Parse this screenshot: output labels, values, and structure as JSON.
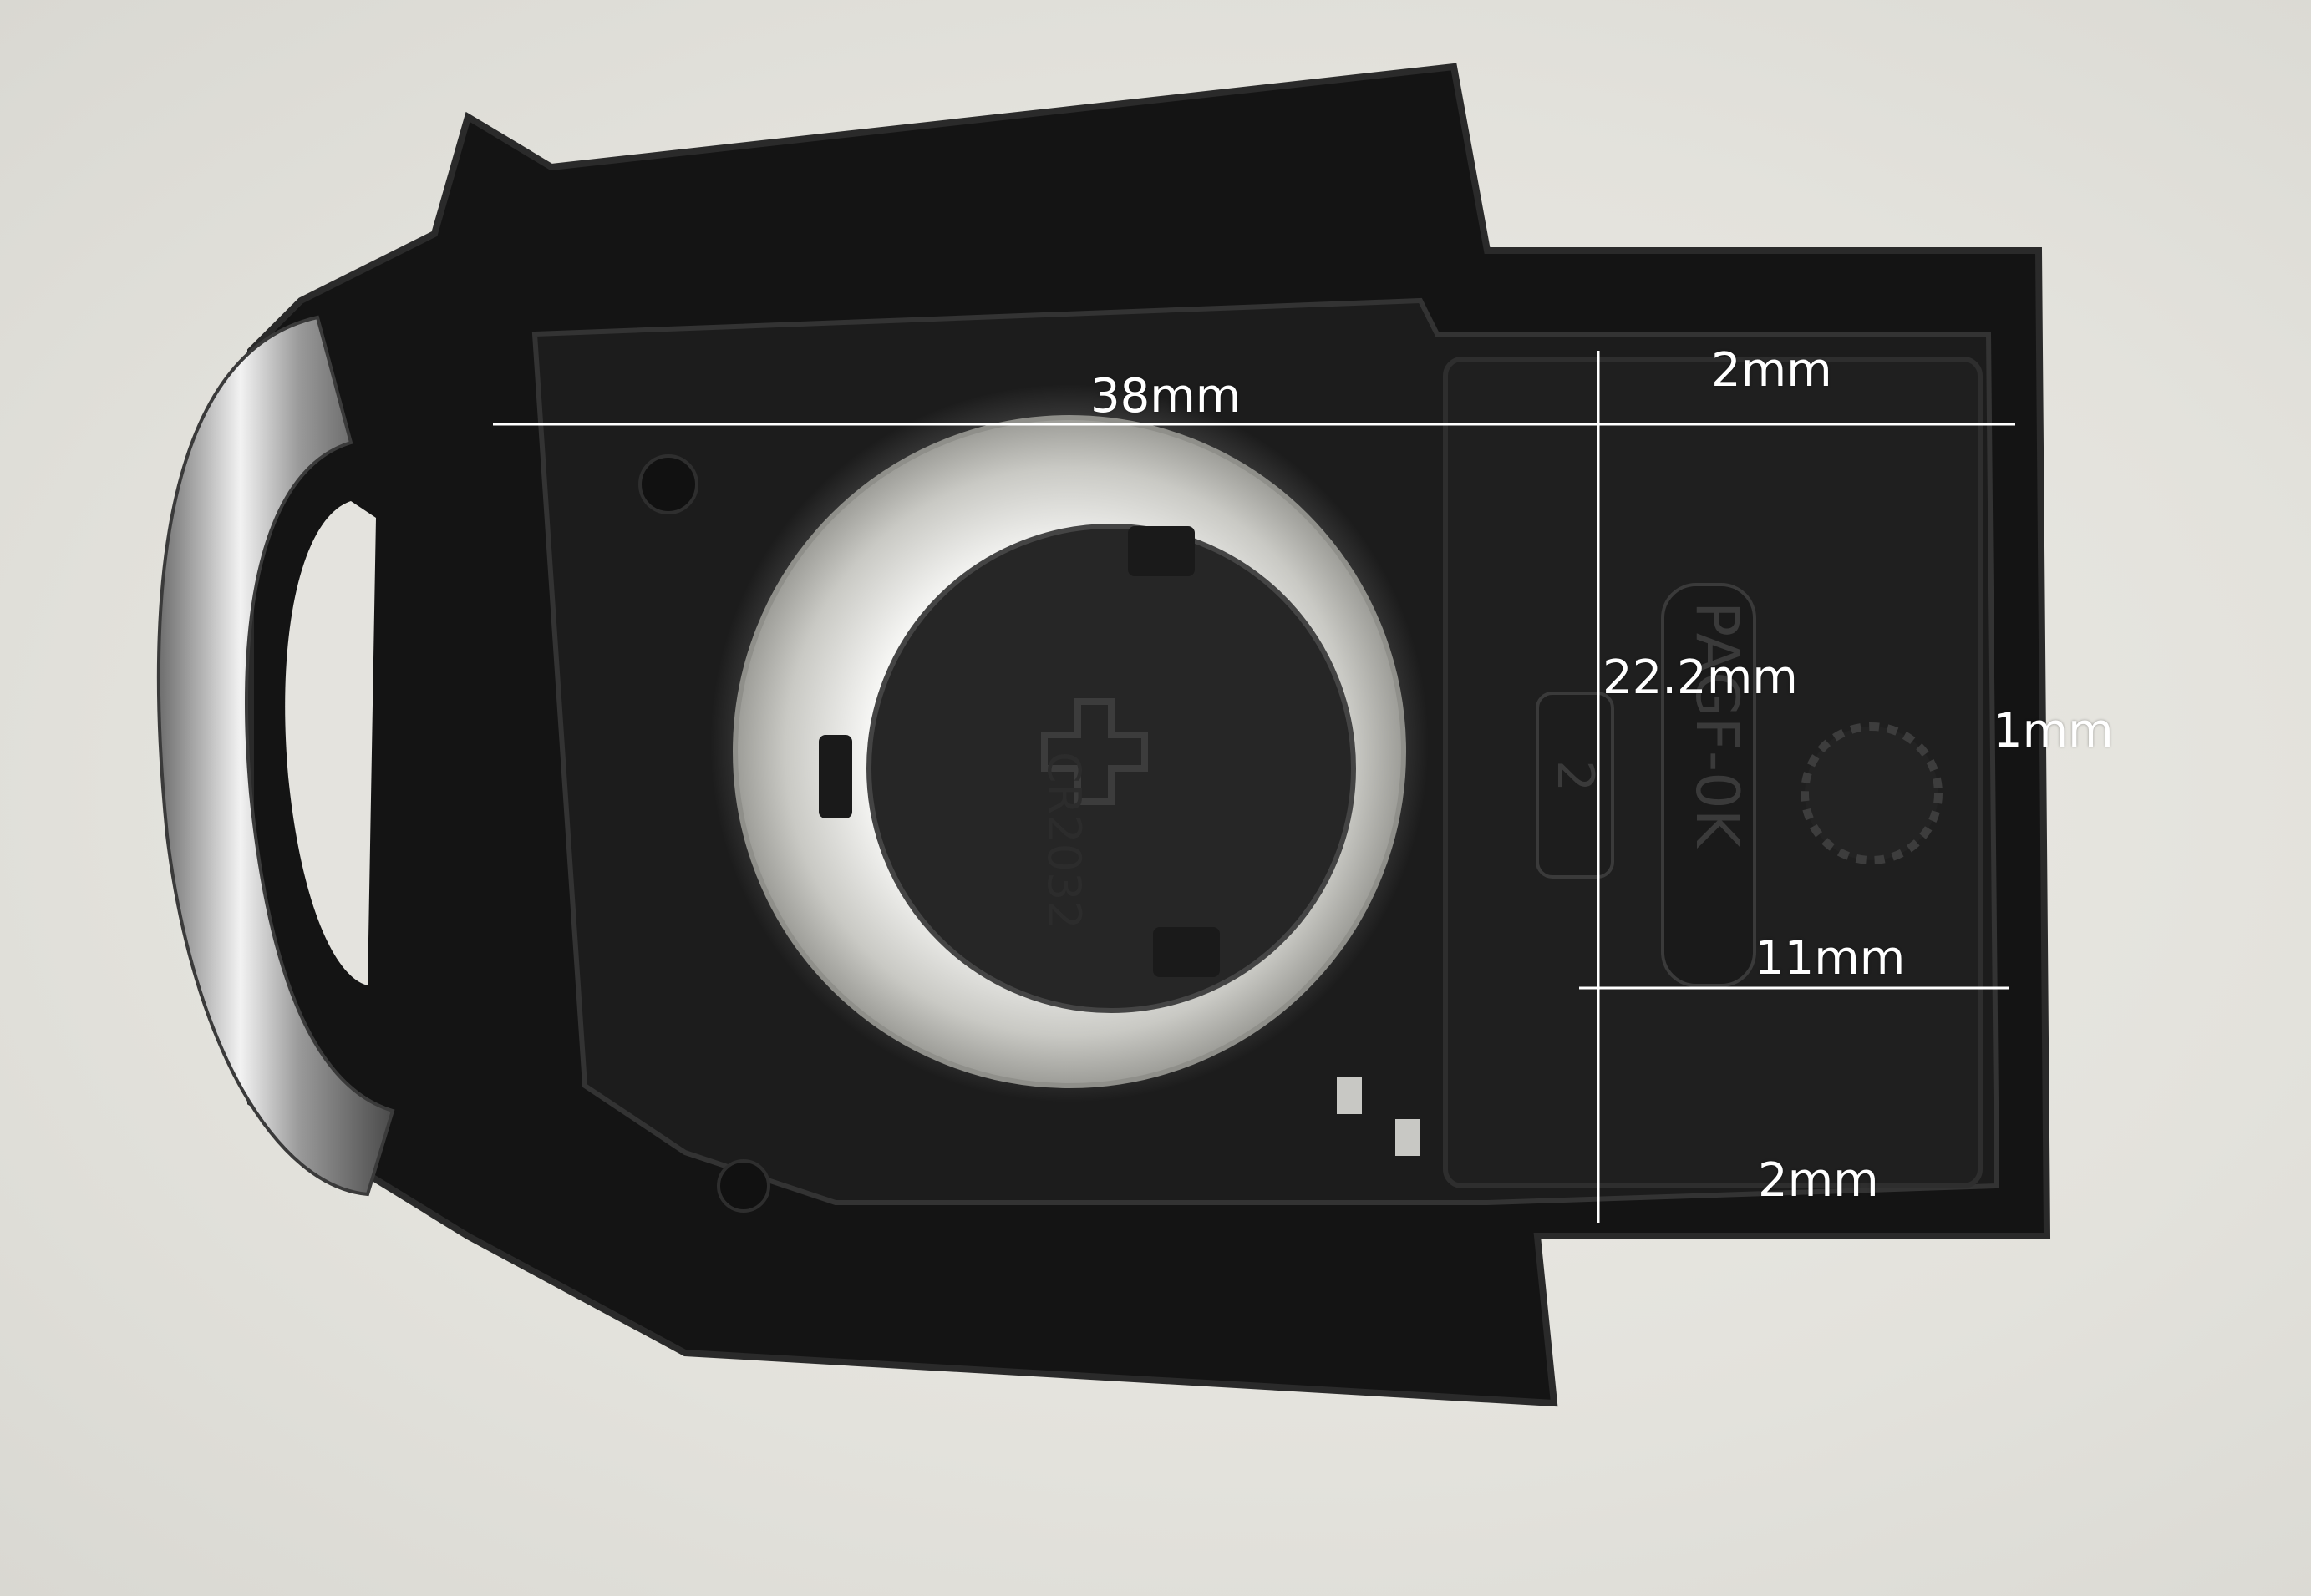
{
  "scene": {
    "subject": "car-key-fob-shell",
    "colors": {
      "background": "#e6e5e0",
      "shell": "#141414",
      "shell_edge": "#2a2a2a",
      "chrome": "#c9c9c9",
      "battery_contact": "#d8d8d2",
      "measure_line": "#ffffff"
    }
  },
  "imprints": {
    "battery": "CR2032",
    "board": "PAGF-0K",
    "slot": "2"
  },
  "measurements": {
    "width_38": "38mm",
    "height_22": "22.2mm",
    "top_2": "2mm",
    "side_1": "1mm",
    "lower_11": "11mm",
    "bottom_2": "2mm"
  }
}
